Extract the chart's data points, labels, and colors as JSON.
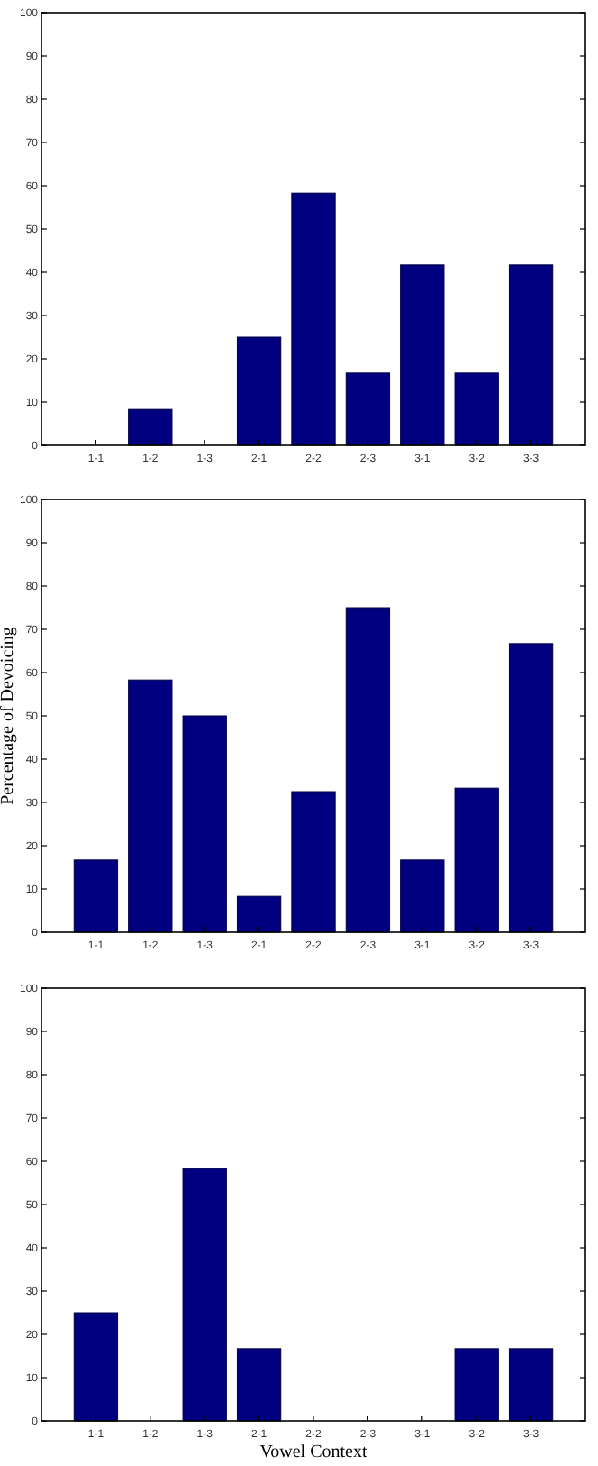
{
  "chart_data": [
    {
      "type": "bar",
      "categories": [
        "1-1",
        "1-2",
        "1-3",
        "2-1",
        "2-2",
        "2-3",
        "3-1",
        "3-2",
        "3-3"
      ],
      "values": [
        0,
        8.3,
        0,
        25,
        58.3,
        16.7,
        41.7,
        16.7,
        41.7
      ],
      "color": "#000080",
      "ylim": [
        0,
        100
      ],
      "yticks": [
        0,
        10,
        20,
        30,
        40,
        50,
        60,
        70,
        80,
        90,
        100
      ],
      "grid": false
    },
    {
      "type": "bar",
      "ylabel": "Percentage of Devoicing",
      "categories": [
        "1-1",
        "1-2",
        "1-3",
        "2-1",
        "2-2",
        "2-3",
        "3-1",
        "3-2",
        "3-3"
      ],
      "values": [
        16.7,
        58.3,
        50,
        8.3,
        32.5,
        75,
        16.7,
        33.3,
        66.7
      ],
      "color": "#000080",
      "ylim": [
        0,
        100
      ],
      "yticks": [
        0,
        10,
        20,
        30,
        40,
        50,
        60,
        70,
        80,
        90,
        100
      ],
      "grid": false
    },
    {
      "type": "bar",
      "xlabel": "Vowel Context",
      "categories": [
        "1-1",
        "1-2",
        "1-3",
        "2-1",
        "2-2",
        "2-3",
        "3-1",
        "3-2",
        "3-3"
      ],
      "values": [
        25,
        0,
        58.3,
        16.7,
        0,
        0,
        0,
        16.7,
        16.7
      ],
      "color": "#000080",
      "ylim": [
        0,
        100
      ],
      "yticks": [
        0,
        10,
        20,
        30,
        40,
        50,
        60,
        70,
        80,
        90,
        100
      ],
      "grid": false
    }
  ]
}
